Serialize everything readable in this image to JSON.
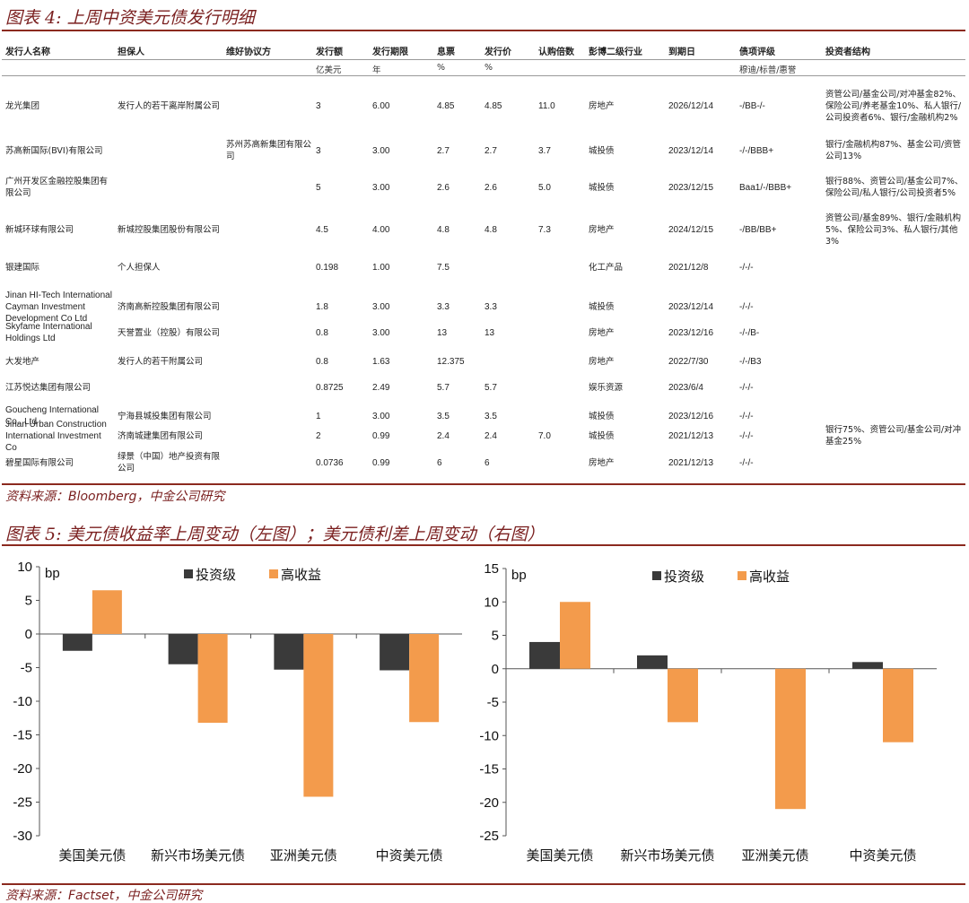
{
  "figure4": {
    "title": "图表 4: 上周中资美元债发行明细",
    "source": "资料来源：Bloomberg，中金公司研究",
    "headers": [
      "发行人名称",
      "担保人",
      "维好协议方",
      "发行额",
      "发行期限",
      "息票",
      "发行价",
      "认购倍数",
      "彭博二级行业",
      "到期日",
      "债项评级",
      "投资者结构"
    ],
    "units": [
      "",
      "",
      "",
      "亿美元",
      "年",
      "%",
      "%",
      "",
      "",
      "",
      "穆迪/标普/惠誉",
      ""
    ],
    "rows": [
      [
        "龙光集团",
        "发行人的若干离岸附属公司",
        "",
        "3",
        "6.00",
        "4.85",
        "4.85",
        "11.0",
        "房地产",
        "2026/12/14",
        "-/BB-/-",
        "资管公司/基金公司/对冲基金82%、保险公司/养老基金10%、私人银行/公司投资者6%、银行/金融机构2%"
      ],
      [
        "苏高新国际(BVI)有限公司",
        "",
        "苏州苏高新集团有限公司",
        "3",
        "3.00",
        "2.7",
        "2.7",
        "3.7",
        "城投债",
        "2023/12/14",
        "-/-/BBB+",
        "银行/金融机构87%、基金公司/资管公司13%"
      ],
      [
        "广州开发区金融控股集团有限公司",
        "",
        "",
        "5",
        "3.00",
        "2.6",
        "2.6",
        "5.0",
        "城投债",
        "2023/12/15",
        "Baa1/-/BBB+",
        "银行88%、资管公司/基金公司7%、保险公司/私人银行/公司投资者5%"
      ],
      [
        "新城环球有限公司",
        "新城控股集团股份有限公司",
        "",
        "4.5",
        "4.00",
        "4.8",
        "4.8",
        "7.3",
        "房地产",
        "2024/12/15",
        "-/BB/BB+",
        "资管公司/基金89%、银行/金融机构5%、保险公司3%、私人银行/其他3%"
      ],
      [
        "银建国际",
        "个人担保人",
        "",
        "0.198",
        "1.00",
        "7.5",
        "",
        "",
        "化工产品",
        "2021/12/8",
        "-/-/-",
        ""
      ],
      [
        "Jinan HI-Tech International Cayman Investment Development Co Ltd",
        "济南高新控股集团有限公司",
        "",
        "1.8",
        "3.00",
        "3.3",
        "3.3",
        "",
        "城投债",
        "2023/12/14",
        "-/-/-",
        ""
      ],
      [
        "Skyfame International Holdings Ltd",
        "天誉置业（控股）有限公司",
        "",
        "0.8",
        "3.00",
        "13",
        "13",
        "",
        "房地产",
        "2023/12/16",
        "-/-/B-",
        ""
      ],
      [
        "大发地产",
        "发行人的若干附属公司",
        "",
        "0.8",
        "1.63",
        "12.375",
        "",
        "",
        "房地产",
        "2022/7/30",
        "-/-/B3",
        ""
      ],
      [
        "江苏悦达集团有限公司",
        "",
        "",
        "0.8725",
        "2.49",
        "5.7",
        "5.7",
        "",
        "娱乐资源",
        "2023/6/4",
        "-/-/-",
        ""
      ],
      [
        "Goucheng International Co., Ltd",
        "宁海县城投集团有限公司",
        "",
        "1",
        "3.00",
        "3.5",
        "3.5",
        "",
        "城投债",
        "2023/12/16",
        "-/-/-",
        ""
      ],
      [
        "Jinan Urban Construction International Investment Co",
        "济南城建集团有限公司",
        "",
        "2",
        "0.99",
        "2.4",
        "2.4",
        "7.0",
        "城投债",
        "2021/12/13",
        "-/-/-",
        "银行75%、资管公司/基金公司/对冲基金25%"
      ],
      [
        "碧星国际有限公司",
        "绿景（中国）地产投资有限公司",
        "",
        "0.0736",
        "0.99",
        "6",
        "6",
        "",
        "房地产",
        "2021/12/13",
        "-/-/-",
        ""
      ]
    ]
  },
  "figure5": {
    "title": "图表 5: 美元债收益率上周变动（左图）；美元债利差上周变动（右图）",
    "source": "资料来源：Factset，中金公司研究"
  },
  "colors": {
    "investment_grade": "#3a3a3a",
    "high_yield": "#f39b4c",
    "accent": "#7a1f1f"
  },
  "chart_data": [
    {
      "type": "bar",
      "unit": "bp",
      "categories": [
        "美国美元债",
        "新兴市场美元债",
        "亚洲美元债",
        "中资美元债"
      ],
      "series": [
        {
          "name": "投资级",
          "values": [
            -2.5,
            -4.5,
            -5.3,
            -5.4
          ]
        },
        {
          "name": "高收益",
          "values": [
            6.5,
            -13.2,
            -24.2,
            -13.1
          ]
        }
      ],
      "ylim": [
        -30,
        10
      ],
      "yticks": [
        -30,
        -25,
        -20,
        -15,
        -10,
        -5,
        0,
        5,
        10
      ],
      "legend": "top-center",
      "grid": false
    },
    {
      "type": "bar",
      "unit": "bp",
      "categories": [
        "美国美元债",
        "新兴市场美元债",
        "亚洲美元债",
        "中资美元债"
      ],
      "series": [
        {
          "name": "投资级",
          "values": [
            4,
            2,
            0,
            1
          ]
        },
        {
          "name": "高收益",
          "values": [
            10,
            -8,
            -21,
            -11
          ]
        }
      ],
      "ylim": [
        -25,
        15
      ],
      "yticks": [
        -25,
        -20,
        -15,
        -10,
        -5,
        0,
        5,
        10,
        15
      ],
      "legend": "top-center",
      "grid": false
    }
  ]
}
